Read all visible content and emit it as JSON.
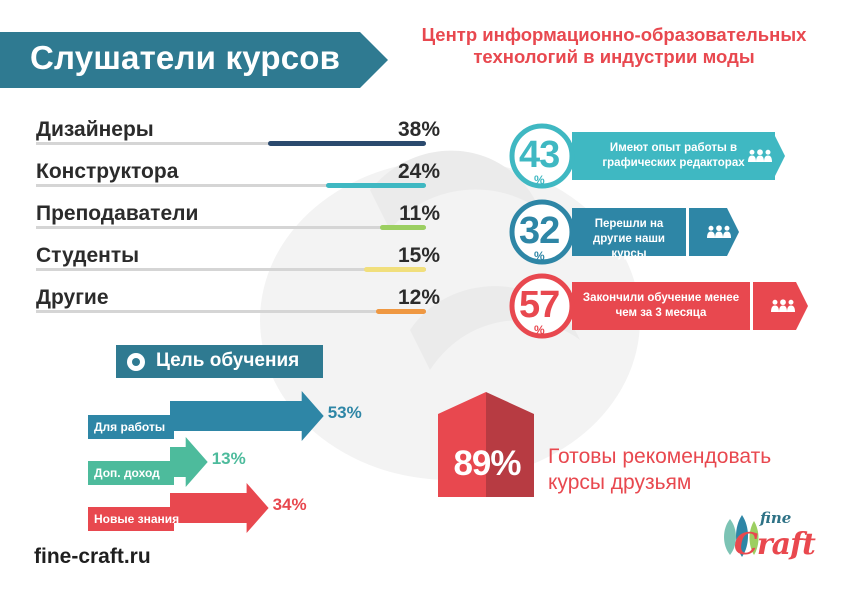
{
  "header": {
    "title": "Слушатели курсов",
    "center_title": "Центр информационно-образовательных технологий в индустрии моды"
  },
  "colors": {
    "teal_dark": "#2f7a91",
    "navy": "#2b4a6e",
    "cyan": "#3fb8c2",
    "green": "#9ccf61",
    "yellow": "#f1df7c",
    "orange": "#ef9842",
    "red": "#e8484f",
    "mint": "#4dbb9c",
    "teal_blue": "#2e86a6"
  },
  "chart_data": [
    {
      "type": "bar",
      "title": "Слушатели курсов",
      "categories": [
        "Дизайнеры",
        "Конструктора",
        "Преподаватели",
        "Студенты",
        "Другие"
      ],
      "values": [
        38,
        24,
        11,
        15,
        12
      ],
      "value_labels": [
        "38%",
        "24%",
        "11%",
        "15%",
        "12%"
      ],
      "colors": [
        "#2b4a6e",
        "#3fb8c2",
        "#9ccf61",
        "#f1df7c",
        "#ef9842"
      ],
      "unit": "%"
    },
    {
      "type": "bar",
      "title": "Цель обучения",
      "categories": [
        "Для работы",
        "Доп. доход",
        "Новые знания"
      ],
      "values": [
        53,
        13,
        34
      ],
      "value_labels": [
        "53%",
        "13%",
        "34%"
      ],
      "colors": [
        "#2e86a6",
        "#4dbb9c",
        "#e8484f"
      ],
      "unit": "%"
    }
  ],
  "stats": [
    {
      "value": "43",
      "percent": "%",
      "text": "Имеют опыт работы в графических редакторах",
      "color": "#3fb8c2",
      "icon": "people-icon"
    },
    {
      "value": "32",
      "percent": "%",
      "text": "Перешли на другие наши курсы",
      "color": "#2e86a6",
      "icon": "people-icon"
    },
    {
      "value": "57",
      "percent": "%",
      "text": "Закончили обучение менее чем за 3 месяца",
      "color": "#e8484f",
      "icon": "people-icon"
    }
  ],
  "goals": {
    "title": "Цель обучения",
    "icon": "target-icon"
  },
  "recommend": {
    "value": "89%",
    "text": "Готовы рекомендовать курсы друзьям"
  },
  "footer": {
    "site": "fine-craft.ru",
    "logo_top": "fine",
    "logo_bottom": "Craft"
  }
}
